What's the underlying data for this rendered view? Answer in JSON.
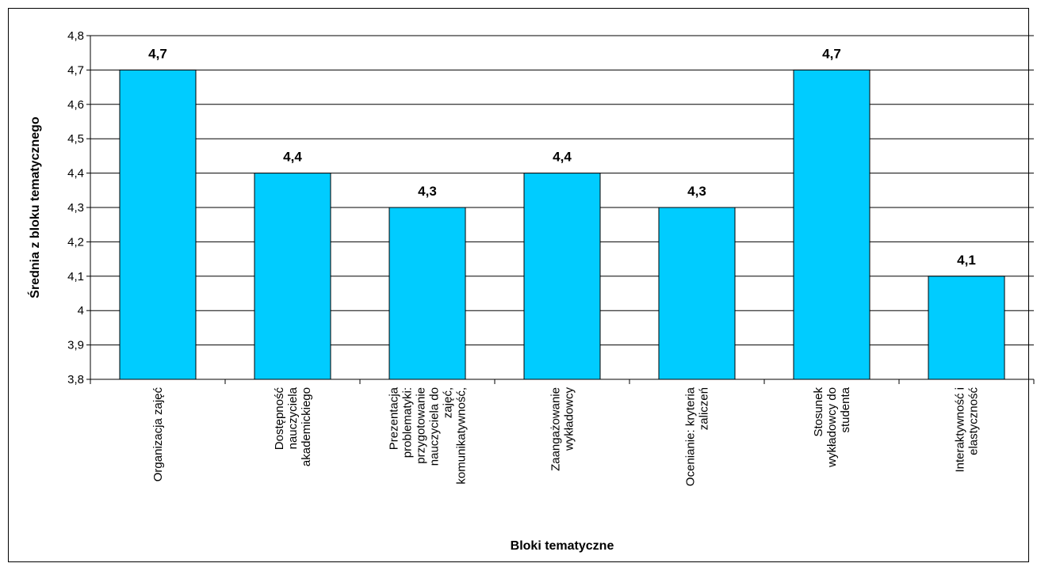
{
  "chart_data": {
    "type": "bar",
    "title": "",
    "xlabel": "Bloki tematyczne",
    "ylabel": "Średnia z bloku tematycznego",
    "ylim": [
      3.8,
      4.8
    ],
    "yticks": [
      "3,8",
      "3,9",
      "4",
      "4,1",
      "4,2",
      "4,3",
      "4,4",
      "4,5",
      "4,6",
      "4,7",
      "4,8"
    ],
    "grid": true,
    "legend": "none",
    "bar_color": "#00CCFF",
    "categories": [
      [
        "Organizacja zajęć"
      ],
      [
        "Dostępność",
        "nauczyciela",
        "akademickiego"
      ],
      [
        "Prezentacja",
        "problematyki:",
        "przygotowanie",
        "nauczyciela do",
        "zajęć,",
        "komunikatywność,"
      ],
      [
        "Zaangażowanie",
        "wykładowcy"
      ],
      [
        "Ocenianie: kryteria",
        "zaliczeń"
      ],
      [
        "Stosunek",
        "wykładowcy do",
        "studenta"
      ],
      [
        "Interaktywność i",
        "elastyczność"
      ]
    ],
    "values": [
      4.7,
      4.4,
      4.3,
      4.4,
      4.3,
      4.7,
      4.1
    ],
    "data_labels": [
      "4,7",
      "4,4",
      "4,3",
      "4,4",
      "4,3",
      "4,7",
      "4,1"
    ]
  }
}
